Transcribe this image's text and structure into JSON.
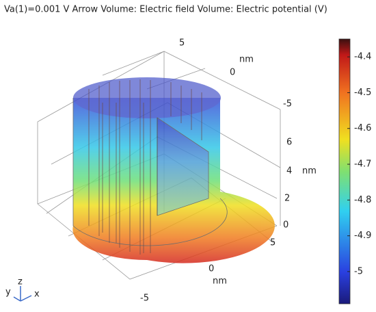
{
  "title": "Va(1)=0.001 V  Arrow Volume: Electric field  Volume: Electric potential (V)",
  "axes_labels": [
    {
      "text": "5"
    },
    {
      "text": "nm"
    },
    {
      "text": "0"
    },
    {
      "text": "-5"
    },
    {
      "text": "6"
    },
    {
      "text": "4"
    },
    {
      "text": "nm"
    },
    {
      "text": "2"
    },
    {
      "text": "0"
    },
    {
      "text": "5"
    },
    {
      "text": "0"
    },
    {
      "text": "nm"
    },
    {
      "text": "-5"
    }
  ],
  "triad": {
    "z": "z",
    "y": "y",
    "x": "x"
  },
  "colorbar": {
    "clim": [
      -5.09,
      -4.35
    ],
    "ticks": [
      -4.4,
      -4.5,
      -4.6,
      -4.7,
      -4.8,
      -4.9,
      -5
    ]
  }
}
